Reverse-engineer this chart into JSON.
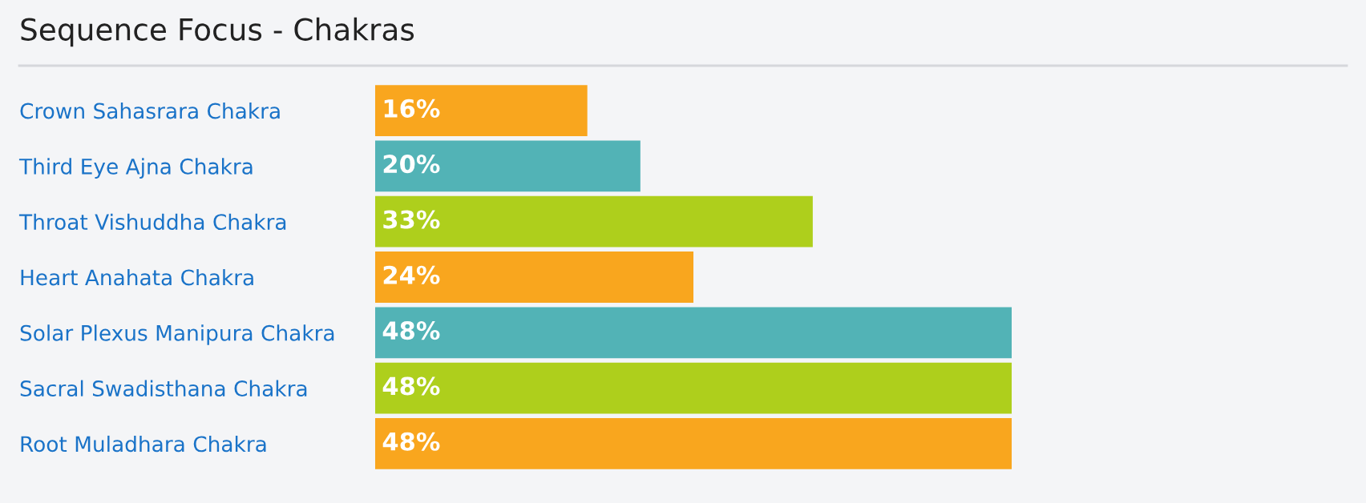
{
  "chart_data": {
    "type": "bar",
    "orientation": "horizontal",
    "title": "Sequence Focus - Chakras",
    "categories": [
      "Crown Sahasrara Chakra",
      "Third Eye Ajna Chakra",
      "Throat Vishuddha Chakra",
      "Heart Anahata Chakra",
      "Solar Plexus Manipura Chakra",
      "Sacral Swadisthana Chakra",
      "Root Muladhara Chakra"
    ],
    "values": [
      16,
      20,
      33,
      24,
      48,
      48,
      48
    ],
    "colors": [
      "#f9a61e",
      "#52b3b6",
      "#aecf1c",
      "#f9a61e",
      "#52b3b6",
      "#aecf1c",
      "#f9a61e"
    ],
    "value_labels": [
      "16%",
      "20%",
      "33%",
      "24%",
      "48%",
      "48%",
      "48%"
    ],
    "grid": false,
    "legend": false
  }
}
